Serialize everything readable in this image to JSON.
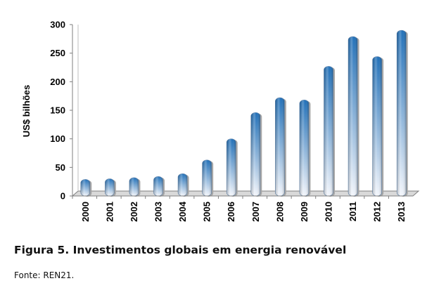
{
  "chart_data": {
    "type": "bar",
    "categories": [
      "2000",
      "2001",
      "2002",
      "2003",
      "2004",
      "2005",
      "2006",
      "2007",
      "2008",
      "2009",
      "2010",
      "2011",
      "2012",
      "2013"
    ],
    "values": [
      29,
      30,
      32,
      34,
      39,
      63,
      100,
      146,
      172,
      168,
      227,
      279,
      244,
      290
    ],
    "ylabel": "US$ bilhões",
    "ylim": [
      0,
      300
    ],
    "yticks": [
      0,
      50,
      100,
      150,
      200,
      250,
      300
    ],
    "grid": false,
    "legend": "none",
    "colors": {
      "bar_top": "#1f6fb8",
      "bar_bottom": "#f2f5fb",
      "axis": "#7f7f7f",
      "shadow": "#a6a6a6"
    }
  },
  "caption": "Figura 5. Investimentos globais em energia renovável",
  "source": "Fonte: REN21."
}
